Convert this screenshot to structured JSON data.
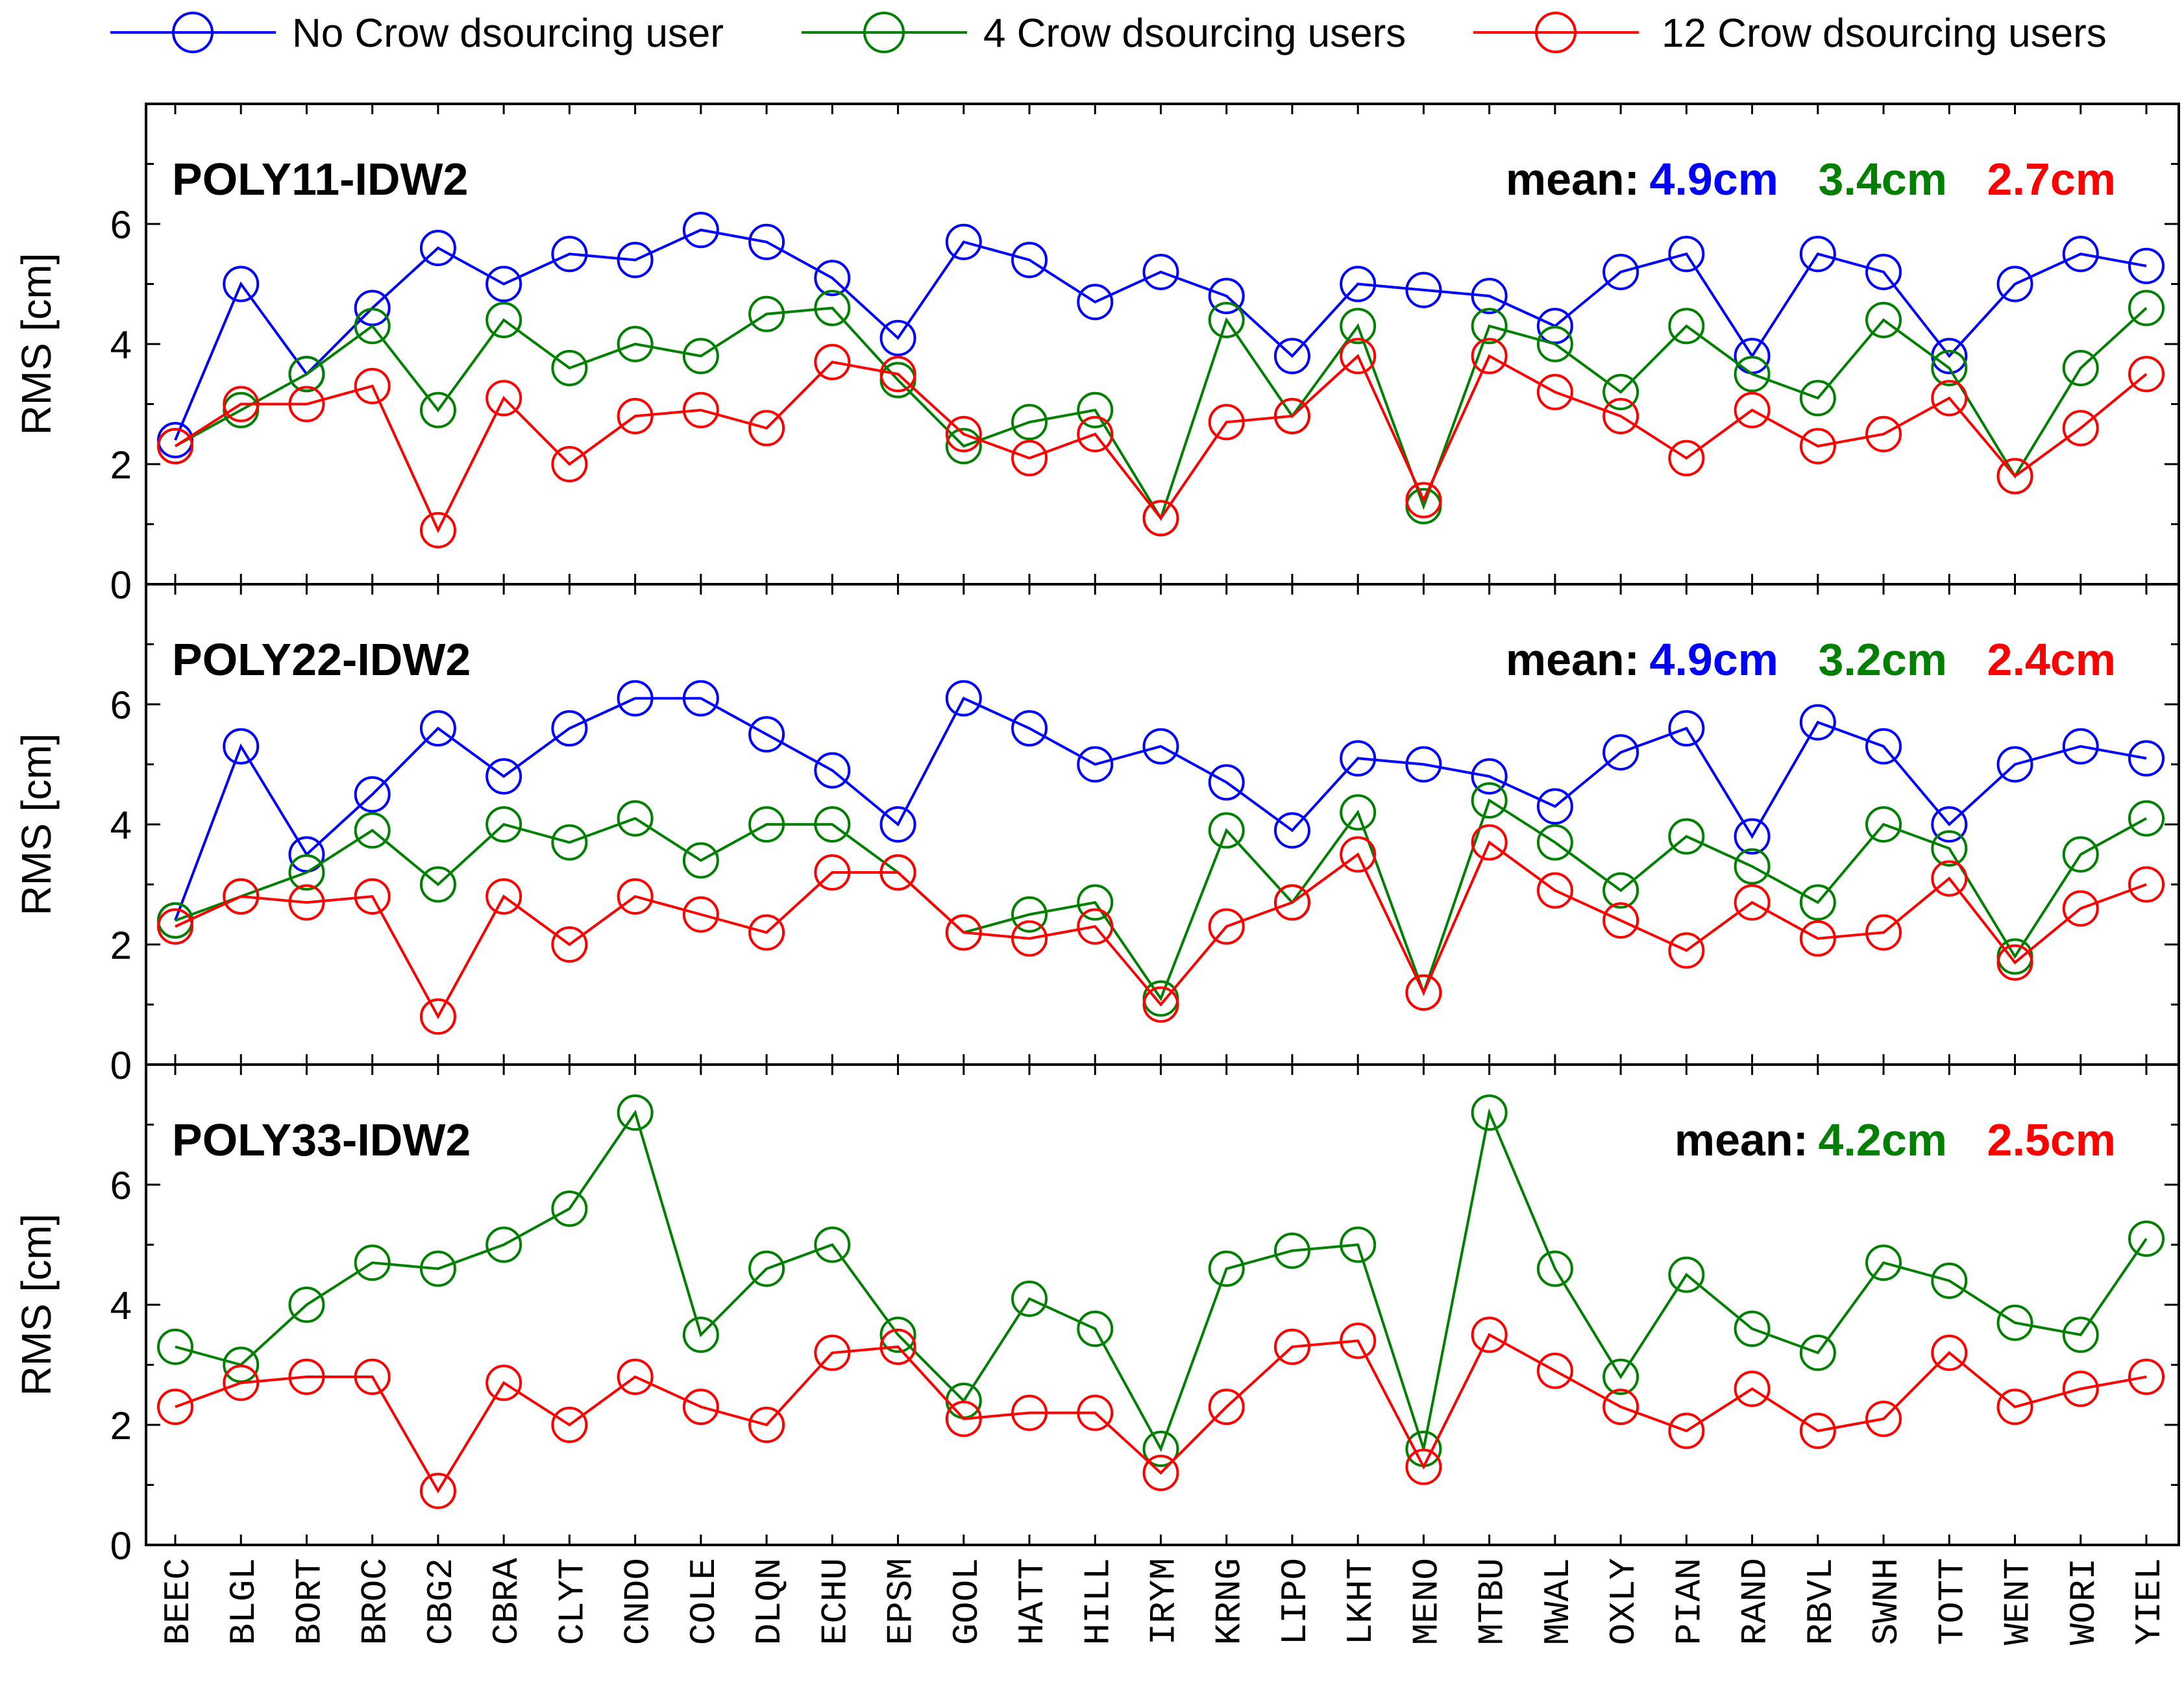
{
  "chart_data": {
    "type": "line",
    "legend": {
      "placement": "top",
      "entries": [
        {
          "name": "No Crow dsourcing user",
          "color": "#0000ff"
        },
        {
          "name": "4 Crow dsourcing users",
          "color": "#008000"
        },
        {
          "name": "12 Crow dsourcing users",
          "color": "#ff0000"
        }
      ]
    },
    "categories": [
      "BEEC",
      "BLGL",
      "BORT",
      "BROC",
      "CBG2",
      "CBRA",
      "CLYT",
      "CNDO",
      "COLE",
      "DLQN",
      "ECHU",
      "EPSM",
      "GOOL",
      "HATT",
      "HILL",
      "IRYM",
      "KRNG",
      "LIPO",
      "LKHT",
      "MENO",
      "MTBU",
      "MWAL",
      "OXLY",
      "PIAN",
      "RAND",
      "RBVL",
      "SWNH",
      "TOTT",
      "WENT",
      "WORI",
      "YIEL"
    ],
    "ylabel": "RMS [cm]",
    "ylim": [
      0,
      8
    ],
    "yticks": [
      0,
      2,
      4,
      6
    ],
    "panels": [
      {
        "title": "POLY11-IDW2",
        "mean_prefix": "mean:",
        "means": [
          {
            "text": "4.9cm",
            "color": "#0000ff"
          },
          {
            "text": "3.4cm",
            "color": "#008000"
          },
          {
            "text": "2.7cm",
            "color": "#ff0000"
          }
        ],
        "series": [
          {
            "name": "No Crow dsourcing user",
            "color": "#0000ff",
            "values": [
              2.4,
              5.0,
              3.5,
              4.6,
              5.6,
              5.0,
              5.5,
              5.4,
              5.9,
              5.7,
              5.1,
              4.1,
              5.7,
              5.4,
              4.7,
              5.2,
              4.8,
              3.8,
              5.0,
              4.9,
              4.8,
              4.3,
              5.2,
              5.5,
              3.8,
              5.5,
              5.2,
              3.8,
              5.0,
              5.5,
              5.3
            ]
          },
          {
            "name": "4 Crow dsourcing users",
            "color": "#008000",
            "values": [
              2.3,
              2.9,
              3.5,
              4.3,
              2.9,
              4.4,
              3.6,
              4.0,
              3.8,
              4.5,
              4.6,
              3.4,
              2.3,
              2.7,
              2.9,
              1.1,
              4.4,
              2.8,
              4.3,
              1.3,
              4.3,
              4.0,
              3.2,
              4.3,
              3.5,
              3.1,
              4.4,
              3.6,
              1.8,
              3.6,
              4.6
            ]
          },
          {
            "name": "12 Crow dsourcing users",
            "color": "#ff0000",
            "values": [
              2.3,
              3.0,
              3.0,
              3.3,
              0.9,
              3.1,
              2.0,
              2.8,
              2.9,
              2.6,
              3.7,
              3.5,
              2.5,
              2.1,
              2.5,
              1.1,
              2.7,
              2.8,
              3.8,
              1.4,
              3.8,
              3.2,
              2.8,
              2.1,
              2.9,
              2.3,
              2.5,
              3.1,
              1.8,
              2.6,
              3.5
            ]
          }
        ]
      },
      {
        "title": "POLY22-IDW2",
        "mean_prefix": "mean:",
        "means": [
          {
            "text": "4.9cm",
            "color": "#0000ff"
          },
          {
            "text": "3.2cm",
            "color": "#008000"
          },
          {
            "text": "2.4cm",
            "color": "#ff0000"
          }
        ],
        "series": [
          {
            "name": "No Crow dsourcing user",
            "color": "#0000ff",
            "values": [
              2.4,
              5.3,
              3.5,
              4.5,
              5.6,
              4.8,
              5.6,
              6.1,
              6.1,
              5.5,
              4.9,
              4.0,
              6.1,
              5.6,
              5.0,
              5.3,
              4.7,
              3.9,
              5.1,
              5.0,
              4.8,
              4.3,
              5.2,
              5.6,
              3.8,
              5.7,
              5.3,
              4.0,
              5.0,
              5.3,
              5.1
            ]
          },
          {
            "name": "4 Crow dsourcing users",
            "color": "#008000",
            "values": [
              2.4,
              2.8,
              3.2,
              3.9,
              3.0,
              4.0,
              3.7,
              4.1,
              3.4,
              4.0,
              4.0,
              3.2,
              2.2,
              2.5,
              2.7,
              1.1,
              3.9,
              2.7,
              4.2,
              1.2,
              4.4,
              3.7,
              2.9,
              3.8,
              3.3,
              2.7,
              4.0,
              3.6,
              1.8,
              3.5,
              4.1
            ]
          },
          {
            "name": "12 Crow dsourcing users",
            "color": "#ff0000",
            "values": [
              2.3,
              2.8,
              2.7,
              2.8,
              0.8,
              2.8,
              2.0,
              2.8,
              2.5,
              2.2,
              3.2,
              3.2,
              2.2,
              2.1,
              2.3,
              1.0,
              2.3,
              2.7,
              3.5,
              1.2,
              3.7,
              2.9,
              2.4,
              1.9,
              2.7,
              2.1,
              2.2,
              3.1,
              1.7,
              2.6,
              3.0
            ]
          }
        ]
      },
      {
        "title": "POLY33-IDW2",
        "mean_prefix": "mean:",
        "means": [
          {
            "text": "4.2cm",
            "color": "#008000"
          },
          {
            "text": "2.5cm",
            "color": "#ff0000"
          }
        ],
        "series": [
          {
            "name": "4 Crow dsourcing users",
            "color": "#008000",
            "values": [
              3.3,
              3.0,
              4.0,
              4.7,
              4.6,
              5.0,
              5.6,
              7.2,
              3.5,
              4.6,
              5.0,
              3.5,
              2.4,
              4.1,
              3.6,
              1.6,
              4.6,
              4.9,
              5.0,
              1.6,
              7.2,
              4.6,
              2.8,
              4.5,
              3.6,
              3.2,
              4.7,
              4.4,
              3.7,
              3.5,
              5.1
            ]
          },
          {
            "name": "12 Crow dsourcing users",
            "color": "#ff0000",
            "values": [
              2.3,
              2.7,
              2.8,
              2.8,
              0.9,
              2.7,
              2.0,
              2.8,
              2.3,
              2.0,
              3.2,
              3.3,
              2.1,
              2.2,
              2.2,
              1.2,
              2.3,
              3.3,
              3.4,
              1.3,
              3.5,
              2.9,
              2.3,
              1.9,
              2.6,
              1.9,
              2.1,
              3.2,
              2.3,
              2.6,
              2.8
            ]
          }
        ]
      }
    ]
  }
}
